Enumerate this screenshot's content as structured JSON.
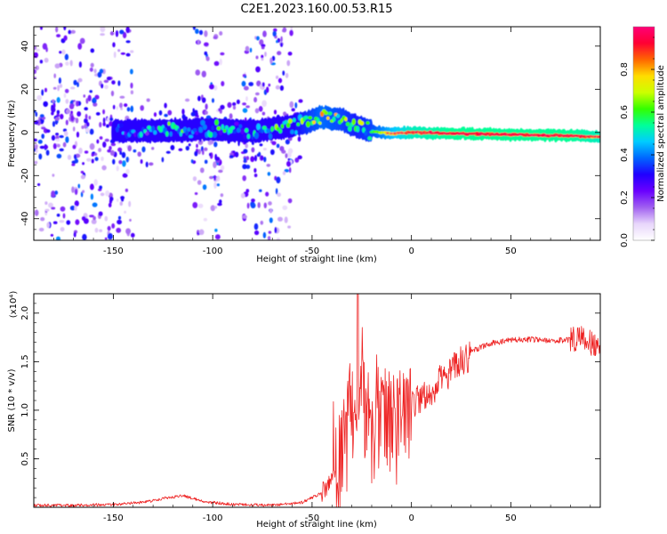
{
  "figure_title": "C2E1.2023.160.00.53.R15",
  "chart_data": [
    {
      "type": "heatmap",
      "xlabel": "Height of straight line (km)",
      "ylabel": "Frequency (Hz)",
      "xlim": [
        -190,
        95
      ],
      "ylim": [
        -50,
        49
      ],
      "x_ticks": [
        -150,
        -100,
        -50,
        0,
        50
      ],
      "y_ticks": [
        -40,
        -20,
        0,
        20,
        40
      ],
      "colorbar": {
        "label": "Normalized spectral amplitude",
        "range": [
          0.0,
          1.0
        ],
        "ticks": [
          0.0,
          0.2,
          0.4,
          0.6,
          0.8
        ],
        "colors": [
          "#ffffff",
          "#e8d6fb",
          "#a060f0",
          "#6a00ff",
          "#2000ff",
          "#0066ff",
          "#00ccff",
          "#00ff99",
          "#33ff00",
          "#ccff00",
          "#ffdd00",
          "#ff6600",
          "#ff0033",
          "#ff0077"
        ]
      },
      "ridge": [
        {
          "x": -150,
          "f": 0.5,
          "amp": 0.4
        },
        {
          "x": -120,
          "f": 1.0,
          "amp": 0.45
        },
        {
          "x": -100,
          "f": 1.5,
          "amp": 0.45
        },
        {
          "x": -80,
          "f": 0.5,
          "amp": 0.45
        },
        {
          "x": -60,
          "f": 3.0,
          "amp": 0.5
        },
        {
          "x": -45,
          "f": 7.0,
          "amp": 0.65
        },
        {
          "x": -35,
          "f": 6.0,
          "amp": 0.6
        },
        {
          "x": -28,
          "f": 3.0,
          "amp": 0.55
        },
        {
          "x": -20,
          "f": 0.5,
          "amp": 0.6
        },
        {
          "x": -10,
          "f": -0.5,
          "amp": 0.75
        },
        {
          "x": 0,
          "f": 0.0,
          "amp": 0.85
        },
        {
          "x": 20,
          "f": -0.5,
          "amp": 0.9
        },
        {
          "x": 50,
          "f": -1.0,
          "amp": 0.9
        },
        {
          "x": 80,
          "f": -1.5,
          "amp": 0.9
        },
        {
          "x": 95,
          "f": -2.0,
          "amp": 0.85
        }
      ],
      "scatter_bands": [
        [
          -190,
          -140
        ],
        [
          -110,
          -95
        ],
        [
          -85,
          -60
        ]
      ]
    },
    {
      "type": "line",
      "xlabel": "Height of straight line (km)",
      "ylabel": "SNR (10 * v/v)",
      "y_multiplier": "(x10⁴)",
      "xlim": [
        -190,
        95
      ],
      "ylim": [
        0.0,
        2.2
      ],
      "x_ticks": [
        -150,
        -100,
        -50,
        0,
        50
      ],
      "y_ticks": [
        0.5,
        1.0,
        1.5,
        2.0
      ],
      "series": [
        {
          "color": "#ee2222",
          "points": [
            [
              -190,
              0.02
            ],
            [
              -170,
              0.02
            ],
            [
              -150,
              0.03
            ],
            [
              -135,
              0.05
            ],
            [
              -125,
              0.09
            ],
            [
              -115,
              0.12
            ],
            [
              -105,
              0.06
            ],
            [
              -90,
              0.03
            ],
            [
              -70,
              0.02
            ],
            [
              -55,
              0.05
            ],
            [
              -45,
              0.15
            ],
            [
              -40,
              0.3
            ],
            [
              -35,
              0.45
            ],
            [
              -30,
              1.1
            ],
            [
              -27,
              0.8
            ],
            [
              -25,
              1.0
            ],
            [
              -20,
              0.8
            ],
            [
              -15,
              0.9
            ],
            [
              -10,
              0.85
            ],
            [
              -5,
              0.95
            ],
            [
              0,
              1.0
            ],
            [
              5,
              1.15
            ],
            [
              10,
              1.2
            ],
            [
              15,
              1.35
            ],
            [
              20,
              1.4
            ],
            [
              25,
              1.5
            ],
            [
              30,
              1.6
            ],
            [
              35,
              1.65
            ],
            [
              40,
              1.69
            ],
            [
              50,
              1.72
            ],
            [
              60,
              1.73
            ],
            [
              70,
              1.72
            ],
            [
              80,
              1.72
            ],
            [
              85,
              1.74
            ],
            [
              90,
              1.7
            ],
            [
              95,
              1.65
            ]
          ]
        }
      ]
    }
  ]
}
